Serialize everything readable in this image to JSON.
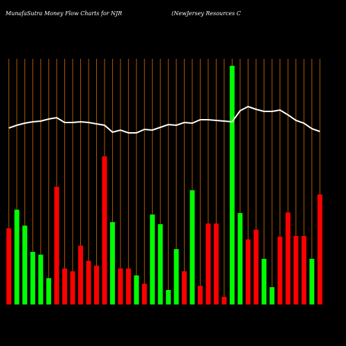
{
  "chart_data": {
    "type": "bar",
    "title": "MunafaSutra  Money Flow  Charts for NJR",
    "subtitle": "(NewJersey Resources C",
    "background": "#000000",
    "grid": true,
    "grid_color": "#b35900",
    "ylim": [
      0,
      355
    ],
    "categories": [
      null,
      null,
      null,
      null,
      null,
      null,
      null,
      null,
      null,
      null,
      null,
      null,
      null,
      null,
      null,
      null,
      null,
      null,
      null,
      null,
      null,
      null,
      null,
      null,
      null,
      null,
      null,
      null,
      null,
      null,
      null,
      null,
      null,
      null,
      null,
      null,
      null,
      null,
      null,
      null
    ],
    "series": [
      {
        "type": "bar",
        "values": [
          110,
          137,
          114,
          76,
          72,
          38,
          170,
          52,
          48,
          85,
          63,
          56,
          214,
          119,
          52,
          52,
          42,
          30,
          130,
          116,
          21,
          80,
          48,
          165,
          27,
          117,
          117,
          11,
          345,
          132,
          94,
          108,
          66,
          25,
          98,
          133,
          99,
          99,
          66,
          159
        ],
        "colors": [
          "#ff0000",
          "#00ff00",
          "#00ff00",
          "#00ff00",
          "#00ff00",
          "#00ff00",
          "#ff0000",
          "#ff0000",
          "#ff0000",
          "#ff0000",
          "#ff0000",
          "#ff0000",
          "#ff0000",
          "#00ff00",
          "#ff0000",
          "#ff0000",
          "#00ff00",
          "#ff0000",
          "#00ff00",
          "#00ff00",
          "#00ff00",
          "#00ff00",
          "#ff0000",
          "#00ff00",
          "#ff0000",
          "#ff0000",
          "#ff0000",
          "#ff0000",
          "#00ff00",
          "#00ff00",
          "#ff0000",
          "#ff0000",
          "#00ff00",
          "#00ff00",
          "#ff0000",
          "#ff0000",
          "#ff0000",
          "#ff0000",
          "#00ff00",
          "#ff0000"
        ]
      },
      {
        "type": "line",
        "color": "#ffffff",
        "values": [
          255,
          259,
          262,
          264,
          265,
          268,
          270,
          263,
          263,
          264,
          263,
          261,
          259,
          249,
          252,
          248,
          248,
          253,
          252,
          256,
          260,
          259,
          263,
          262,
          267,
          267,
          266,
          265,
          264,
          280,
          286,
          282,
          279,
          279,
          281,
          274,
          266,
          262,
          254,
          250
        ]
      }
    ]
  }
}
